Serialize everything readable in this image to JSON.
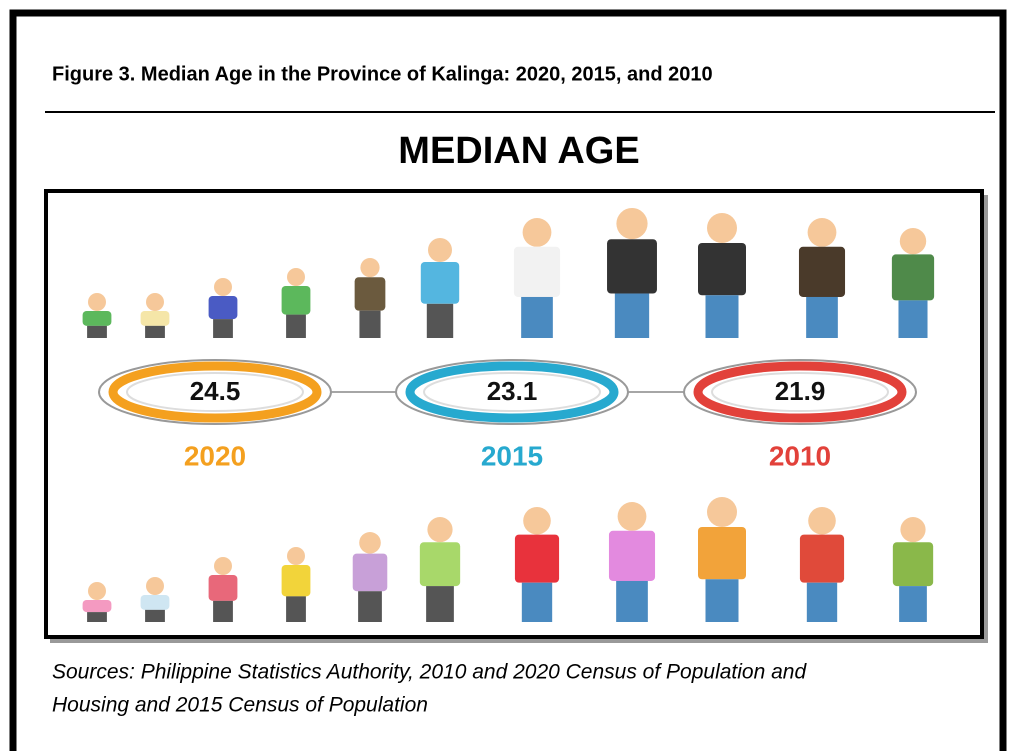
{
  "figure": {
    "caption": "Figure 3. Median Age in the Province of Kalinga: 2020, 2015, and 2010"
  },
  "infographic": {
    "title": "MEDIAN AGE",
    "items": [
      {
        "value": "24.5",
        "year": "2020",
        "color": "#f4a01f"
      },
      {
        "value": "23.1",
        "year": "2015",
        "color": "#27a9cf"
      },
      {
        "value": "21.9",
        "year": "2010",
        "color": "#e2413a"
      }
    ]
  },
  "sources": [
    "Sources: Philippine Statistics Authority, 2010 and 2020 Census of Population and",
    "Housing and 2015 Census of Population"
  ]
}
